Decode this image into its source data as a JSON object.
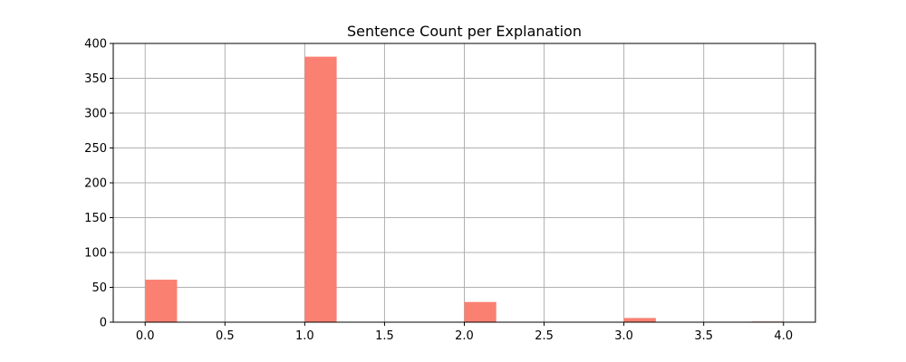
{
  "chart_data": {
    "type": "bar",
    "title": "Sentence Count per Explanation",
    "xlabel": "",
    "ylabel": "",
    "xlim": [
      -0.2,
      4.2
    ],
    "ylim": [
      0,
      400
    ],
    "x_ticks": [
      0.0,
      0.5,
      1.0,
      1.5,
      2.0,
      2.5,
      3.0,
      3.5,
      4.0
    ],
    "x_tick_labels": [
      "0.0",
      "0.5",
      "1.0",
      "1.5",
      "2.0",
      "2.5",
      "3.0",
      "3.5",
      "4.0"
    ],
    "y_ticks": [
      0,
      50,
      100,
      150,
      200,
      250,
      300,
      350,
      400
    ],
    "y_tick_labels": [
      "0",
      "50",
      "100",
      "150",
      "200",
      "250",
      "300",
      "350",
      "400"
    ],
    "grid": true,
    "bar_color": "#fa8072",
    "bars": [
      {
        "x_start": 0.0,
        "x_end": 0.2,
        "value": 61
      },
      {
        "x_start": 1.0,
        "x_end": 1.2,
        "value": 381
      },
      {
        "x_start": 2.0,
        "x_end": 2.2,
        "value": 29
      },
      {
        "x_start": 3.0,
        "x_end": 3.2,
        "value": 6
      },
      {
        "x_start": 3.8,
        "x_end": 4.0,
        "value": 1
      }
    ]
  }
}
